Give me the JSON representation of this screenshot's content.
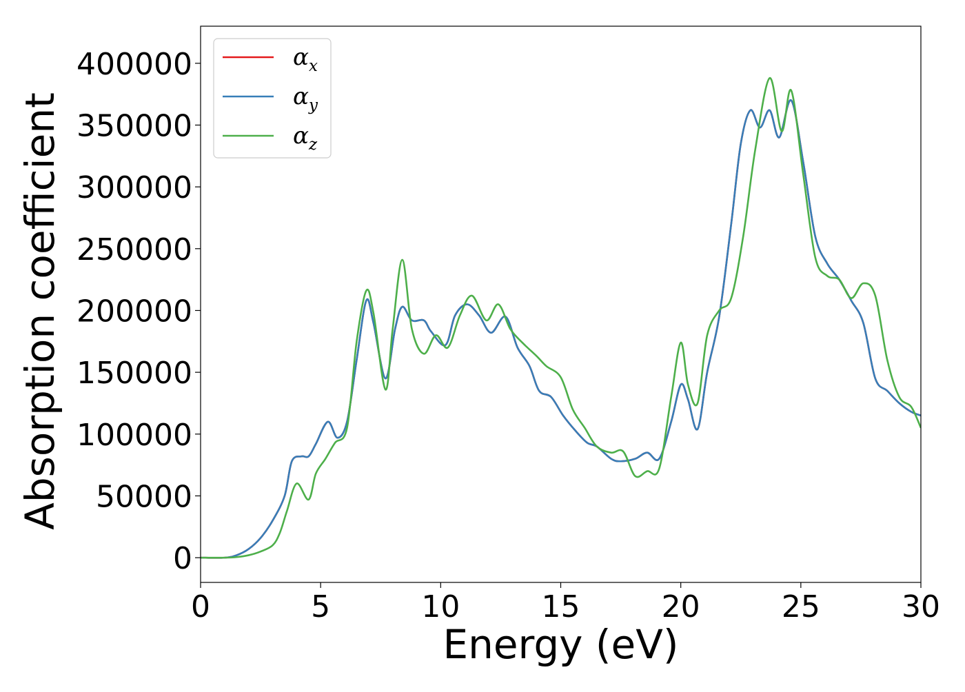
{
  "chart_data": {
    "type": "line",
    "xlabel": "Energy (eV)",
    "ylabel": "Absorption coefficient",
    "xlim": [
      0,
      30
    ],
    "ylim": [
      -20000,
      430000
    ],
    "xticks": [
      0,
      5,
      10,
      15,
      20,
      25,
      30
    ],
    "xtick_labels": [
      "0",
      "5",
      "10",
      "15",
      "20",
      "25",
      "30"
    ],
    "yticks": [
      0,
      50000,
      100000,
      150000,
      200000,
      250000,
      300000,
      350000,
      400000
    ],
    "ytick_labels": [
      "0",
      "50000",
      "100000",
      "150000",
      "200000",
      "250000",
      "300000",
      "350000",
      "400000"
    ],
    "grid": false,
    "legend_position": "top-left",
    "series": [
      {
        "name": "α_x",
        "label_main": "α",
        "label_sub": "x",
        "color": "#e41a1c",
        "x": [
          0,
          1,
          1.5,
          2,
          2.5,
          3,
          3.5,
          3.8,
          4.2,
          4.5,
          4.8,
          5.3,
          5.7,
          6.1,
          6.5,
          6.9,
          7.2,
          7.7,
          8.1,
          8.4,
          8.8,
          9.3,
          9.6,
          10.2,
          10.6,
          11.1,
          11.6,
          12.1,
          12.7,
          13.2,
          13.7,
          14.1,
          14.6,
          15.1,
          15.6,
          16.1,
          16.5,
          17.1,
          17.5,
          18.1,
          18.6,
          19.1,
          19.6,
          20.0,
          20.3,
          20.7,
          21.1,
          21.6,
          22.1,
          22.5,
          22.9,
          23.3,
          23.7,
          24.1,
          24.6,
          25.1,
          25.6,
          26.1,
          26.6,
          27.1,
          27.6,
          28.1,
          28.6,
          29.1,
          29.6,
          30
        ],
        "values": [
          0,
          0,
          2000,
          7000,
          16000,
          30000,
          50000,
          78000,
          82000,
          82000,
          92000,
          110000,
          97000,
          110000,
          160000,
          208000,
          190000,
          145000,
          185000,
          203000,
          192000,
          192000,
          183000,
          172000,
          196000,
          205000,
          196000,
          182000,
          195000,
          170000,
          155000,
          135000,
          130000,
          115000,
          103000,
          93000,
          90000,
          80000,
          78000,
          80000,
          85000,
          80000,
          110000,
          140000,
          128000,
          104000,
          150000,
          195000,
          270000,
          335000,
          362000,
          348000,
          362000,
          340000,
          370000,
          320000,
          260000,
          238000,
          225000,
          208000,
          190000,
          145000,
          135000,
          125000,
          118000,
          115000
        ]
      },
      {
        "name": "α_y",
        "label_main": "α",
        "label_sub": "y",
        "color": "#377eb8",
        "x": [
          0,
          1,
          1.5,
          2,
          2.5,
          3,
          3.5,
          3.8,
          4.2,
          4.5,
          4.8,
          5.3,
          5.7,
          6.1,
          6.5,
          6.9,
          7.2,
          7.7,
          8.1,
          8.4,
          8.8,
          9.3,
          9.6,
          10.2,
          10.6,
          11.1,
          11.6,
          12.1,
          12.7,
          13.2,
          13.7,
          14.1,
          14.6,
          15.1,
          15.6,
          16.1,
          16.5,
          17.1,
          17.5,
          18.1,
          18.6,
          19.1,
          19.6,
          20.0,
          20.3,
          20.7,
          21.1,
          21.6,
          22.1,
          22.5,
          22.9,
          23.3,
          23.7,
          24.1,
          24.6,
          25.1,
          25.6,
          26.1,
          26.6,
          27.1,
          27.6,
          28.1,
          28.6,
          29.1,
          29.6,
          30
        ],
        "values": [
          0,
          0,
          2000,
          7000,
          16000,
          30000,
          50000,
          78000,
          82000,
          82000,
          92000,
          110000,
          97000,
          110000,
          160000,
          208000,
          190000,
          145000,
          185000,
          203000,
          192000,
          192000,
          183000,
          172000,
          196000,
          205000,
          196000,
          182000,
          195000,
          170000,
          155000,
          135000,
          130000,
          115000,
          103000,
          93000,
          90000,
          80000,
          78000,
          80000,
          85000,
          80000,
          110000,
          140000,
          128000,
          104000,
          150000,
          195000,
          270000,
          335000,
          362000,
          348000,
          362000,
          340000,
          370000,
          320000,
          260000,
          238000,
          225000,
          208000,
          190000,
          145000,
          135000,
          125000,
          118000,
          115000
        ]
      },
      {
        "name": "α_z",
        "label_main": "α",
        "label_sub": "z",
        "color": "#4daf4a",
        "x": [
          0,
          1,
          1.5,
          2,
          2.5,
          3,
          3.3,
          3.6,
          4.0,
          4.5,
          4.8,
          5.2,
          5.6,
          6.1,
          6.5,
          6.9,
          7.2,
          7.7,
          8.0,
          8.4,
          8.8,
          9.3,
          9.8,
          10.3,
          10.8,
          11.3,
          11.9,
          12.4,
          12.9,
          13.4,
          14.0,
          14.4,
          15.0,
          15.5,
          16.0,
          16.5,
          17.1,
          17.6,
          18.1,
          18.6,
          19.1,
          19.6,
          20.0,
          20.3,
          20.7,
          21.1,
          21.6,
          22.1,
          22.6,
          23.1,
          23.7,
          24.2,
          24.6,
          25.1,
          25.6,
          26.1,
          26.6,
          27.1,
          27.6,
          28.1,
          28.6,
          29.1,
          29.6,
          30
        ],
        "values": [
          0,
          0,
          500,
          2000,
          5000,
          10000,
          20000,
          38000,
          60000,
          47000,
          68000,
          80000,
          93000,
          105000,
          175000,
          216000,
          198000,
          136000,
          185000,
          241000,
          185000,
          165000,
          180000,
          170000,
          196000,
          212000,
          192000,
          205000,
          185000,
          174000,
          163000,
          155000,
          146000,
          120000,
          105000,
          90000,
          85000,
          86000,
          66000,
          70000,
          72000,
          130000,
          174000,
          140000,
          125000,
          180000,
          200000,
          210000,
          260000,
          330000,
          388000,
          345000,
          378000,
          310000,
          243000,
          228000,
          225000,
          210000,
          222000,
          212000,
          160000,
          130000,
          122000,
          105000
        ]
      }
    ]
  }
}
